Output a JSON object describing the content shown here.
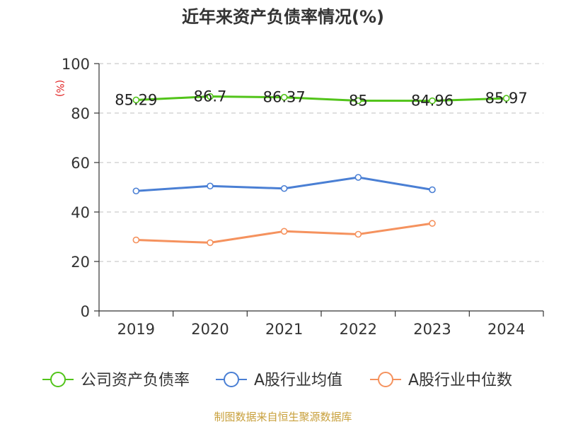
{
  "chart_data": {
    "type": "line",
    "title": "近年来资产负债率情况(%)",
    "ylabel": "(%)",
    "xlabel": "",
    "categories": [
      "2019",
      "2020",
      "2021",
      "2022",
      "2023",
      "2024"
    ],
    "ylim": [
      0,
      100
    ],
    "yticks": [
      0,
      20,
      40,
      60,
      80,
      100
    ],
    "grid": true,
    "legend_position": "bottom",
    "series": [
      {
        "name": "公司资产负债率",
        "color": "#52c41a",
        "values": [
          85.29,
          86.7,
          86.37,
          85,
          84.96,
          85.97
        ],
        "labels": [
          "85.29",
          "86.7",
          "86.37",
          "85",
          "84.96",
          "85.97"
        ]
      },
      {
        "name": "A股行业均值",
        "color": "#4a7fd4",
        "values": [
          48.5,
          50.5,
          49.5,
          54,
          49,
          null
        ],
        "labels": null
      },
      {
        "name": "A股行业中位数",
        "color": "#f5925e",
        "values": [
          28.7,
          27.6,
          32.2,
          31,
          35.4,
          null
        ],
        "labels": null
      }
    ],
    "source": "制图数据来自恒生聚源数据库"
  }
}
